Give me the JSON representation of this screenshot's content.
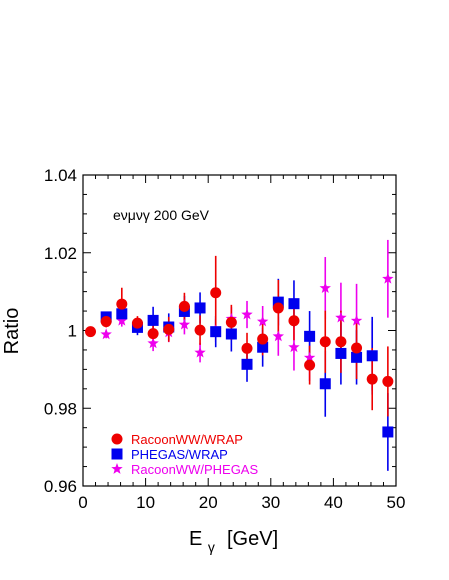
{
  "chart_data": {
    "type": "scatter",
    "annotation": "eνμνγ  200 GeV",
    "xlabel_main": "E",
    "xlabel_sub": "γ",
    "xlabel_unit": "[GeV]",
    "ylabel": "Ratio",
    "xlim": [
      0,
      50
    ],
    "ylim": [
      0.96,
      1.04
    ],
    "xticks": [
      0,
      10,
      20,
      30,
      40,
      50
    ],
    "xtick_labels": [
      "0",
      "10",
      "20",
      "30",
      "40",
      "50"
    ],
    "yticks": [
      0.96,
      0.98,
      1.0,
      1.02,
      1.04
    ],
    "ytick_labels": [
      "0.96",
      "0.98",
      "1",
      "1.02",
      "1.04"
    ],
    "grid": false,
    "legend_position": "bottom-left",
    "series": [
      {
        "name": "RacoonWW/WRAP",
        "marker": "circle",
        "color": "#ee0000",
        "x": [
          1.2,
          3.7,
          6.2,
          8.7,
          11.2,
          13.7,
          16.2,
          18.7,
          21.2,
          23.7,
          26.2,
          28.7,
          31.2,
          33.7,
          36.2,
          38.7,
          41.2,
          43.7,
          46.2,
          48.7
        ],
        "y": [
          0.9997,
          1.0023,
          1.0068,
          1.0019,
          0.9992,
          1.0003,
          1.0062,
          1.0001,
          1.0097,
          1.0021,
          0.9954,
          0.9978,
          1.0058,
          1.0025,
          0.9911,
          0.9971,
          0.9971,
          0.9955,
          0.9875,
          0.9869
        ],
        "err": [
          0,
          0.0015,
          0.0042,
          0.0018,
          0.0025,
          0.0032,
          0.0035,
          0.0038,
          0.0095,
          0.0045,
          0.004,
          0.0042,
          0.0072,
          0.005,
          0.005,
          0.008,
          0.008,
          0.008,
          0.008,
          0.009
        ]
      },
      {
        "name": "PHEGAS/WRAP",
        "marker": "square",
        "color": "#0000ee",
        "x": [
          3.7,
          6.2,
          8.7,
          11.2,
          13.7,
          16.2,
          18.7,
          21.2,
          23.7,
          26.2,
          28.7,
          31.2,
          33.7,
          36.2,
          38.7,
          41.2,
          43.7,
          46.2,
          48.7
        ],
        "y": [
          1.0035,
          1.0043,
          1.0008,
          1.0026,
          1.0009,
          1.0049,
          1.0058,
          0.9997,
          0.9991,
          0.9913,
          0.9957,
          1.0073,
          1.0069,
          0.9985,
          0.9863,
          0.9941,
          0.9931,
          0.9935,
          0.9739
        ],
        "err": [
          0.001,
          0.002,
          0.002,
          0.0035,
          0.0035,
          0.004,
          0.004,
          0.004,
          0.0045,
          0.0045,
          0.005,
          0.006,
          0.006,
          0.0065,
          0.0085,
          0.008,
          0.007,
          0.01,
          0.01
        ]
      },
      {
        "name": "RacoonWW/PHEGAS",
        "marker": "star",
        "color": "#ee00ee",
        "x": [
          3.7,
          6.2,
          8.7,
          11.2,
          13.7,
          16.2,
          18.7,
          21.2,
          23.7,
          26.2,
          28.7,
          31.2,
          33.7,
          36.2,
          38.7,
          41.2,
          43.7,
          46.2,
          48.7
        ],
        "y": [
          0.999,
          1.0025,
          1.0012,
          0.9967,
          0.9995,
          1.0015,
          0.9943,
          1.0,
          1.003,
          1.0041,
          1.0023,
          0.9985,
          0.9957,
          0.993,
          1.0109,
          1.0033,
          1.0025,
          0.9935,
          1.0133
        ],
        "err": [
          0.001,
          0.0015,
          0.0015,
          0.002,
          0.0025,
          0.0025,
          0.0025,
          0.003,
          0.003,
          0.0035,
          0.004,
          0.005,
          0.006,
          0.006,
          0.008,
          0.009,
          0.0095,
          0.009,
          0.01
        ]
      }
    ]
  }
}
